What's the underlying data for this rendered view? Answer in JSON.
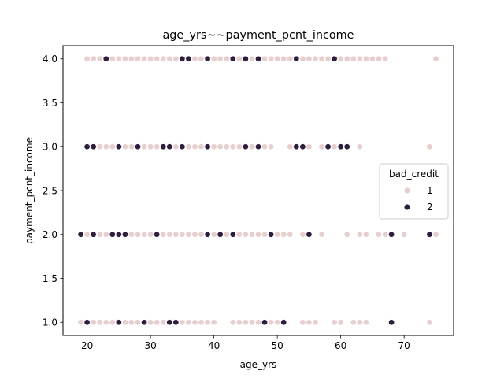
{
  "chart_data": {
    "type": "scatter",
    "title": "age_yrs~~payment_pcnt_income",
    "xlabel": "age_yrs",
    "ylabel": "payment_pcnt_income",
    "xlim": [
      16.2,
      77.8
    ],
    "ylim": [
      0.85,
      4.15
    ],
    "xticks": [
      20,
      30,
      40,
      50,
      60,
      70
    ],
    "yticks": [
      1.0,
      1.5,
      2.0,
      2.5,
      3.0,
      3.5,
      4.0
    ],
    "xtick_labels": [
      "20",
      "30",
      "40",
      "50",
      "60",
      "70"
    ],
    "ytick_labels": [
      "1.0",
      "1.5",
      "2.0",
      "2.5",
      "3.0",
      "3.5",
      "4.0"
    ],
    "grid": false,
    "legend": {
      "title": "bad_credit",
      "placement": "center-right",
      "entries": [
        {
          "label": "1",
          "color": "#e8cfcf"
        },
        {
          "label": "2",
          "color": "#2d1e3e"
        }
      ]
    },
    "series": [
      {
        "name": "1",
        "color": "#e8cfcf",
        "points": [
          [
            19,
            1
          ],
          [
            20,
            1
          ],
          [
            21,
            1
          ],
          [
            22,
            1
          ],
          [
            23,
            1
          ],
          [
            24,
            1
          ],
          [
            25,
            1
          ],
          [
            26,
            1
          ],
          [
            27,
            1
          ],
          [
            28,
            1
          ],
          [
            30,
            1
          ],
          [
            31,
            1
          ],
          [
            32,
            1
          ],
          [
            34,
            1
          ],
          [
            35,
            1
          ],
          [
            36,
            1
          ],
          [
            37,
            1
          ],
          [
            38,
            1
          ],
          [
            39,
            1
          ],
          [
            40,
            1
          ],
          [
            43,
            1
          ],
          [
            44,
            1
          ],
          [
            45,
            1
          ],
          [
            46,
            1
          ],
          [
            47,
            1
          ],
          [
            49,
            1
          ],
          [
            50,
            1
          ],
          [
            54,
            1
          ],
          [
            55,
            1
          ],
          [
            56,
            1
          ],
          [
            59,
            1
          ],
          [
            60,
            1
          ],
          [
            62,
            1
          ],
          [
            63,
            1
          ],
          [
            64,
            1
          ],
          [
            74,
            1
          ],
          [
            19,
            2
          ],
          [
            20,
            2
          ],
          [
            22,
            2
          ],
          [
            23,
            2
          ],
          [
            24,
            2
          ],
          [
            27,
            2
          ],
          [
            28,
            2
          ],
          [
            29,
            2
          ],
          [
            30,
            2
          ],
          [
            32,
            2
          ],
          [
            33,
            2
          ],
          [
            34,
            2
          ],
          [
            35,
            2
          ],
          [
            36,
            2
          ],
          [
            37,
            2
          ],
          [
            38,
            2
          ],
          [
            39,
            2
          ],
          [
            40,
            2
          ],
          [
            42,
            2
          ],
          [
            44,
            2
          ],
          [
            45,
            2
          ],
          [
            46,
            2
          ],
          [
            47,
            2
          ],
          [
            48,
            2
          ],
          [
            50,
            2
          ],
          [
            51,
            2
          ],
          [
            52,
            2
          ],
          [
            54,
            2
          ],
          [
            57,
            2
          ],
          [
            61,
            2
          ],
          [
            63,
            2
          ],
          [
            64,
            2
          ],
          [
            66,
            2
          ],
          [
            67,
            2
          ],
          [
            70,
            2
          ],
          [
            75,
            2
          ],
          [
            21,
            3
          ],
          [
            22,
            3
          ],
          [
            23,
            3
          ],
          [
            24,
            3
          ],
          [
            26,
            3
          ],
          [
            27,
            3
          ],
          [
            29,
            3
          ],
          [
            30,
            3
          ],
          [
            31,
            3
          ],
          [
            34,
            3
          ],
          [
            36,
            3
          ],
          [
            37,
            3
          ],
          [
            38,
            3
          ],
          [
            40,
            3
          ],
          [
            41,
            3
          ],
          [
            42,
            3
          ],
          [
            43,
            3
          ],
          [
            44,
            3
          ],
          [
            46,
            3
          ],
          [
            48,
            3
          ],
          [
            49,
            3
          ],
          [
            52,
            3
          ],
          [
            55,
            3
          ],
          [
            57,
            3
          ],
          [
            59,
            3
          ],
          [
            63,
            3
          ],
          [
            74,
            3
          ],
          [
            20,
            4
          ],
          [
            21,
            4
          ],
          [
            22,
            4
          ],
          [
            24,
            4
          ],
          [
            25,
            4
          ],
          [
            26,
            4
          ],
          [
            27,
            4
          ],
          [
            28,
            4
          ],
          [
            29,
            4
          ],
          [
            30,
            4
          ],
          [
            31,
            4
          ],
          [
            32,
            4
          ],
          [
            33,
            4
          ],
          [
            34,
            4
          ],
          [
            37,
            4
          ],
          [
            38,
            4
          ],
          [
            40,
            4
          ],
          [
            41,
            4
          ],
          [
            42,
            4
          ],
          [
            44,
            4
          ],
          [
            46,
            4
          ],
          [
            48,
            4
          ],
          [
            49,
            4
          ],
          [
            50,
            4
          ],
          [
            51,
            4
          ],
          [
            52,
            4
          ],
          [
            54,
            4
          ],
          [
            55,
            4
          ],
          [
            56,
            4
          ],
          [
            57,
            4
          ],
          [
            58,
            4
          ],
          [
            60,
            4
          ],
          [
            61,
            4
          ],
          [
            62,
            4
          ],
          [
            63,
            4
          ],
          [
            64,
            4
          ],
          [
            65,
            4
          ],
          [
            66,
            4
          ],
          [
            67,
            4
          ],
          [
            75,
            4
          ]
        ]
      },
      {
        "name": "2",
        "color": "#2d1e3e",
        "points": [
          [
            20,
            1
          ],
          [
            25,
            1
          ],
          [
            29,
            1
          ],
          [
            33,
            1
          ],
          [
            34,
            1
          ],
          [
            48,
            1
          ],
          [
            51,
            1
          ],
          [
            68,
            1
          ],
          [
            19,
            2
          ],
          [
            21,
            2
          ],
          [
            24,
            2
          ],
          [
            25,
            2
          ],
          [
            26,
            2
          ],
          [
            31,
            2
          ],
          [
            39,
            2
          ],
          [
            41,
            2
          ],
          [
            43,
            2
          ],
          [
            49,
            2
          ],
          [
            55,
            2
          ],
          [
            68,
            2
          ],
          [
            74,
            2
          ],
          [
            20,
            3
          ],
          [
            21,
            3
          ],
          [
            25,
            3
          ],
          [
            28,
            3
          ],
          [
            32,
            3
          ],
          [
            33,
            3
          ],
          [
            35,
            3
          ],
          [
            39,
            3
          ],
          [
            45,
            3
          ],
          [
            47,
            3
          ],
          [
            53,
            3
          ],
          [
            54,
            3
          ],
          [
            58,
            3
          ],
          [
            60,
            3
          ],
          [
            61,
            3
          ],
          [
            23,
            4
          ],
          [
            35,
            4
          ],
          [
            36,
            4
          ],
          [
            39,
            4
          ],
          [
            43,
            4
          ],
          [
            45,
            4
          ],
          [
            47,
            4
          ],
          [
            53,
            4
          ],
          [
            59,
            4
          ]
        ]
      }
    ]
  }
}
